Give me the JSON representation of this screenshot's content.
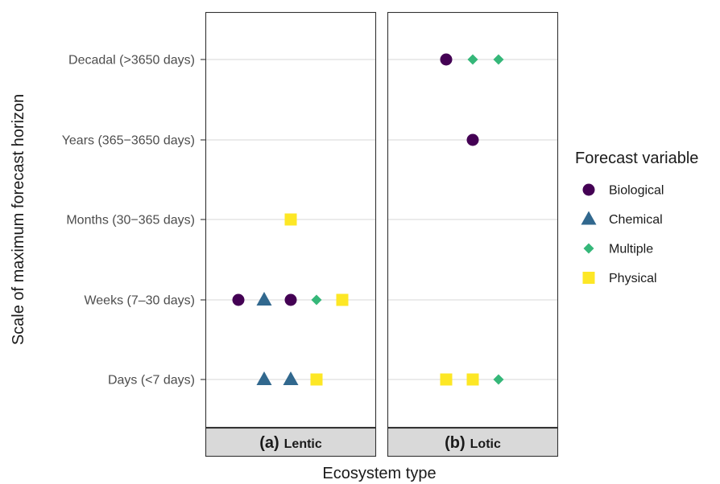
{
  "chart_data": {
    "type": "scatter",
    "xlabel": "Ecosystem type",
    "ylabel": "Scale of maximum forecast horizon",
    "y_categories": [
      "Days (<7 days)",
      "Weeks (7–30 days)",
      "Months (30−365 days)",
      "Years (365−3650 days)",
      "Decadal (>3650 days)"
    ],
    "legend": {
      "title": "Forecast variable",
      "position": "right",
      "entries": [
        {
          "name": "Biological",
          "color": "#440154",
          "shape": "circle"
        },
        {
          "name": "Chemical",
          "color": "#31688e",
          "shape": "triangle"
        },
        {
          "name": "Multiple",
          "color": "#35b779",
          "shape": "diamond"
        },
        {
          "name": "Physical",
          "color": "#fde725",
          "shape": "square"
        }
      ]
    },
    "grid": "horizontal major gridlines",
    "panels": [
      {
        "tag": "(a)",
        "name": "Lentic",
        "points": [
          {
            "y": "Weeks (7–30 days)",
            "variable": "Biological",
            "slot": 0
          },
          {
            "y": "Weeks (7–30 days)",
            "variable": "Chemical",
            "slot": 1
          },
          {
            "y": "Weeks (7–30 days)",
            "variable": "Biological",
            "slot": 2
          },
          {
            "y": "Weeks (7–30 days)",
            "variable": "Multiple",
            "slot": 3
          },
          {
            "y": "Weeks (7–30 days)",
            "variable": "Physical",
            "slot": 4
          },
          {
            "y": "Days (<7 days)",
            "variable": "Chemical",
            "slot": 1
          },
          {
            "y": "Days (<7 days)",
            "variable": "Chemical",
            "slot": 2
          },
          {
            "y": "Days (<7 days)",
            "variable": "Physical",
            "slot": 3
          },
          {
            "y": "Months (30−365 days)",
            "variable": "Physical",
            "slot": 2
          }
        ]
      },
      {
        "tag": "(b)",
        "name": "Lotic",
        "points": [
          {
            "y": "Decadal (>3650 days)",
            "variable": "Biological",
            "slot": 1
          },
          {
            "y": "Decadal (>3650 days)",
            "variable": "Multiple",
            "slot": 2
          },
          {
            "y": "Decadal (>3650 days)",
            "variable": "Multiple",
            "slot": 3
          },
          {
            "y": "Years (365−3650 days)",
            "variable": "Biological",
            "slot": 2
          },
          {
            "y": "Days (<7 days)",
            "variable": "Physical",
            "slot": 1
          },
          {
            "y": "Days (<7 days)",
            "variable": "Physical",
            "slot": 2
          },
          {
            "y": "Days (<7 days)",
            "variable": "Multiple",
            "slot": 3
          }
        ]
      }
    ]
  }
}
